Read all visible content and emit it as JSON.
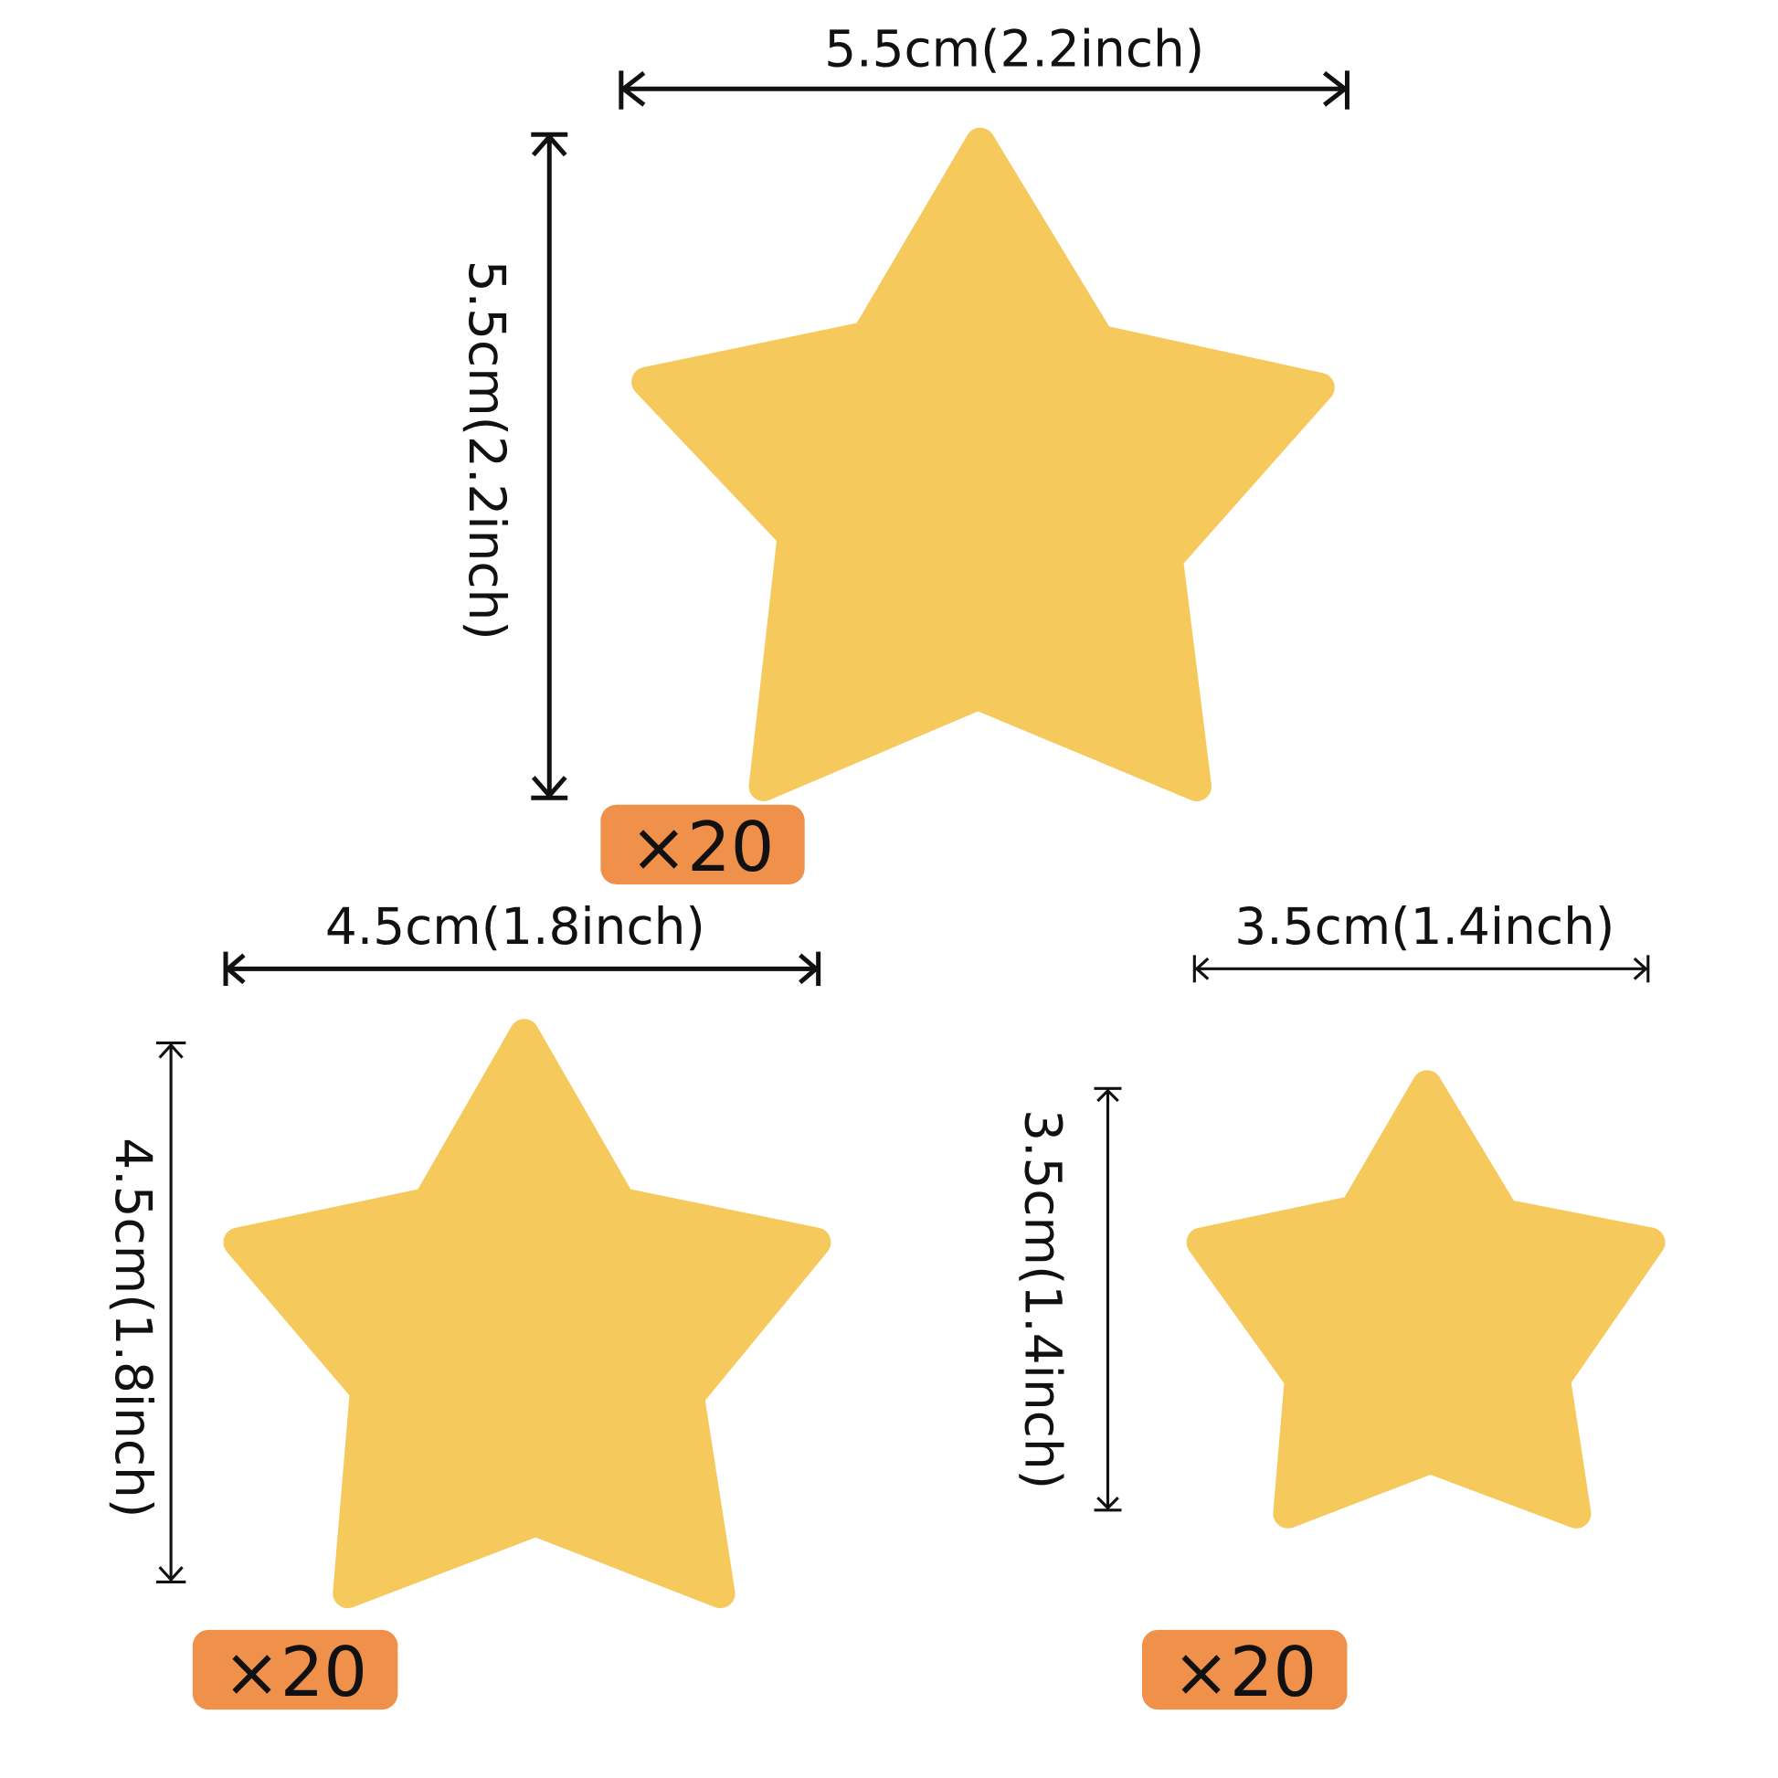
{
  "colors": {
    "star": "#f6c95c",
    "badge": "#f0914b",
    "text": "#111111"
  },
  "stars": [
    {
      "width_label": "5.5cm(2.2inch)",
      "height_label": "5.5cm(2.2inch)",
      "quantity": "×20"
    },
    {
      "width_label": "4.5cm(1.8inch)",
      "height_label": "4.5cm(1.8inch)",
      "quantity": "×20"
    },
    {
      "width_label": "3.5cm(1.4inch)",
      "height_label": "3.5cm(1.4inch)",
      "quantity": "×20"
    }
  ]
}
